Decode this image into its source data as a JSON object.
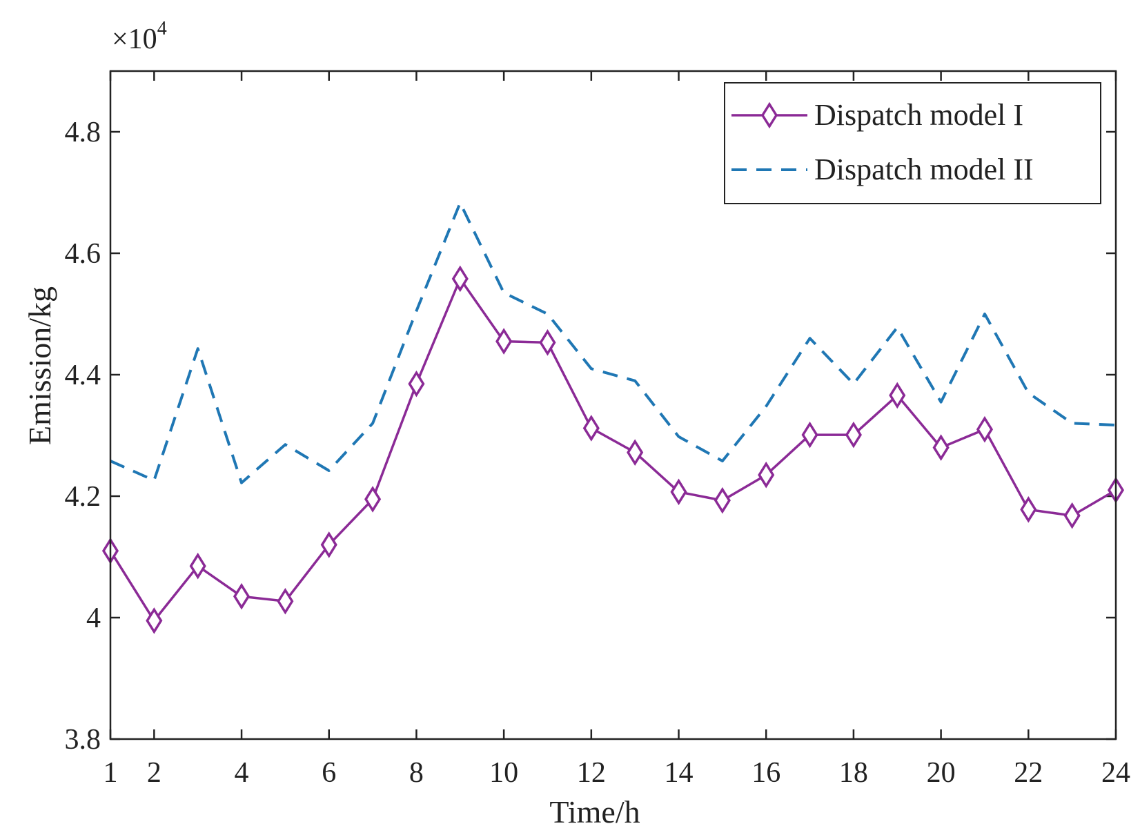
{
  "chart_data": {
    "type": "line",
    "title": "",
    "xlabel": "Time/h",
    "ylabel": "Emission/kg",
    "y_scale_label": {
      "prefix": "×10",
      "exponent": "4"
    },
    "xlim": [
      1,
      24
    ],
    "ylim": [
      3.8,
      4.9
    ],
    "x_ticks": [
      1,
      2,
      4,
      6,
      8,
      10,
      12,
      14,
      16,
      18,
      20,
      22,
      24
    ],
    "y_ticks": [
      3.8,
      4,
      4.2,
      4.4,
      4.6,
      4.8
    ],
    "y_tick_labels": [
      "3.8",
      "4",
      "4.2",
      "4.4",
      "4.6",
      "4.8"
    ],
    "legend_position": "top-right",
    "x": [
      1,
      2,
      3,
      4,
      5,
      6,
      7,
      8,
      9,
      10,
      11,
      12,
      13,
      14,
      15,
      16,
      17,
      18,
      19,
      20,
      21,
      22,
      23,
      24
    ],
    "series": [
      {
        "name": "Dispatch model I",
        "color": "#8B2A96",
        "style": "solid-diamond",
        "values": [
          4.11,
          3.995,
          4.085,
          4.035,
          4.027,
          4.12,
          4.195,
          4.385,
          4.558,
          4.455,
          4.453,
          4.312,
          4.272,
          4.207,
          4.193,
          4.235,
          4.301,
          4.301,
          4.366,
          4.28,
          4.31,
          4.178,
          4.168,
          4.21
        ]
      },
      {
        "name": "Dispatch model II",
        "color": "#1F77B4",
        "style": "dashed",
        "values": [
          4.258,
          4.226,
          4.443,
          4.222,
          4.285,
          4.242,
          4.32,
          4.505,
          4.683,
          4.535,
          4.5,
          4.41,
          4.39,
          4.298,
          4.258,
          4.348,
          4.46,
          4.385,
          4.478,
          4.355,
          4.5,
          4.37,
          4.32,
          4.317
        ]
      }
    ]
  }
}
